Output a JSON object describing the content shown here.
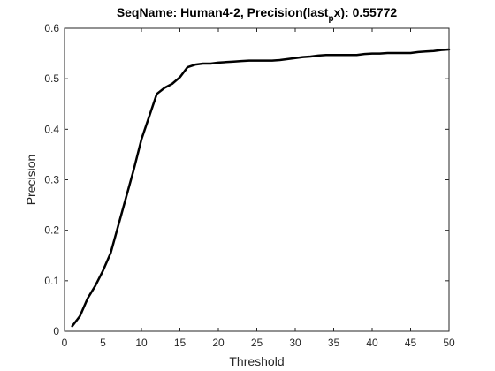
{
  "chart_data": {
    "type": "line",
    "title": "SeqName: Human4-2, Precision(last_p x): 0.55772",
    "title_parts": {
      "prefix": "SeqName: Human4-2, Precision(last",
      "sub": "p",
      "suffix": "x): 0.55772"
    },
    "xlabel": "Threshold",
    "ylabel": "Precision",
    "xlim": [
      0,
      50
    ],
    "ylim": [
      0,
      0.6
    ],
    "xticks": [
      0,
      5,
      10,
      15,
      20,
      25,
      30,
      35,
      40,
      45,
      50
    ],
    "yticks": [
      0,
      0.1,
      0.2,
      0.3,
      0.4,
      0.5,
      0.6
    ],
    "grid": false,
    "line_color": "#000000",
    "series": [
      {
        "x": [
          1,
          2,
          3,
          4,
          5,
          6,
          7,
          8,
          9,
          10,
          11,
          12,
          13,
          14,
          15,
          16,
          17,
          18,
          19,
          20,
          21,
          22,
          23,
          24,
          25,
          26,
          27,
          28,
          29,
          30,
          31,
          32,
          33,
          34,
          35,
          36,
          37,
          38,
          39,
          40,
          41,
          42,
          43,
          44,
          45,
          46,
          47,
          48,
          49,
          50
        ],
        "y": [
          0.01,
          0.03,
          0.065,
          0.09,
          0.12,
          0.155,
          0.21,
          0.265,
          0.32,
          0.38,
          0.425,
          0.47,
          0.482,
          0.49,
          0.503,
          0.523,
          0.528,
          0.53,
          0.53,
          0.532,
          0.533,
          0.534,
          0.535,
          0.536,
          0.536,
          0.536,
          0.536,
          0.537,
          0.539,
          0.541,
          0.543,
          0.544,
          0.546,
          0.547,
          0.547,
          0.547,
          0.547,
          0.547,
          0.549,
          0.55,
          0.55,
          0.551,
          0.551,
          0.551,
          0.551,
          0.553,
          0.554,
          0.555,
          0.557,
          0.558
        ]
      }
    ]
  }
}
